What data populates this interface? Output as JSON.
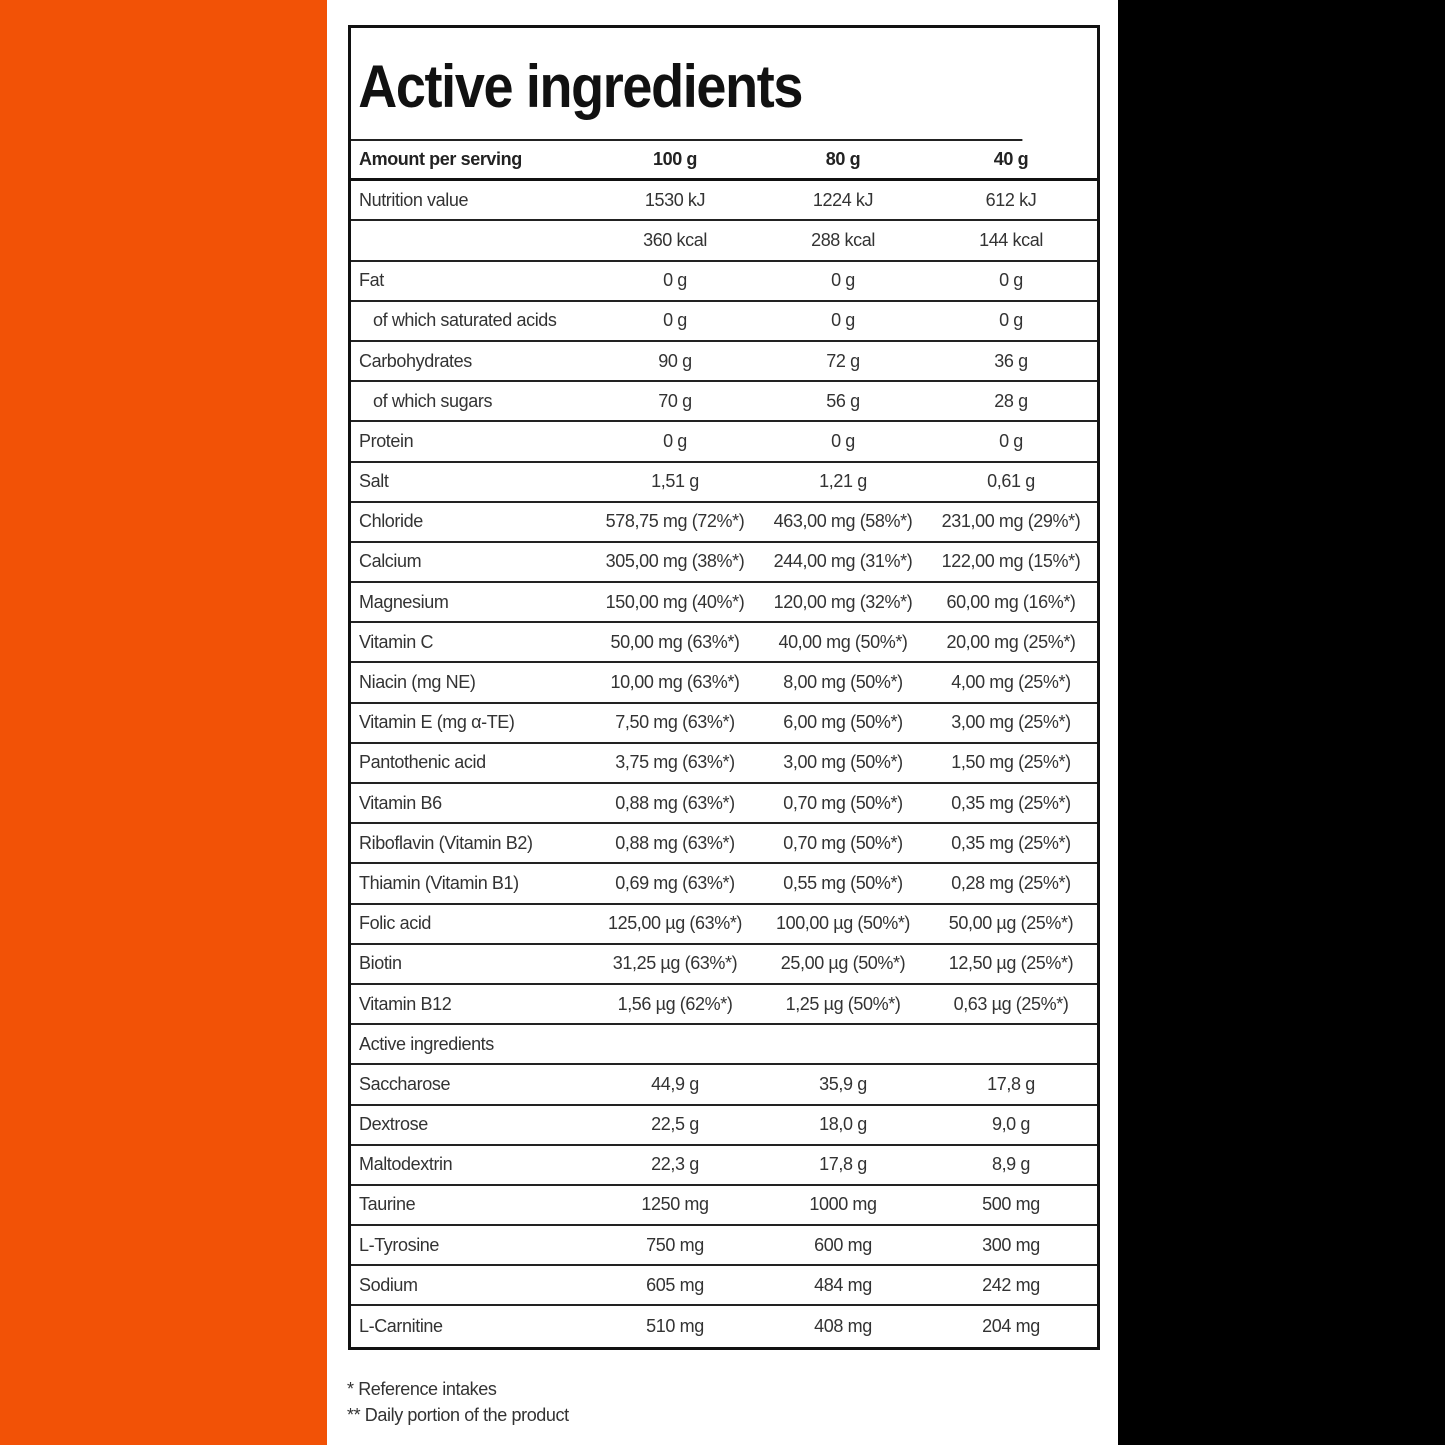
{
  "colors": {
    "left_panel": "#f25206",
    "right_panel": "#000000",
    "border": "#111111"
  },
  "title": "Active ingredients",
  "header": [
    "Amount per serving",
    "100 g",
    "80 g",
    "40 g"
  ],
  "rows": [
    {
      "label": "Nutrition value",
      "values": [
        "1530 kJ",
        "1224 kJ",
        "612 kJ"
      ]
    },
    {
      "label": "",
      "values": [
        "360 kcal",
        "288 kcal",
        "144 kcal"
      ]
    },
    {
      "label": "Fat",
      "values": [
        "0 g",
        "0 g",
        "0 g"
      ]
    },
    {
      "label": "of which saturated acids",
      "indent": true,
      "values": [
        "0 g",
        "0 g",
        "0 g"
      ]
    },
    {
      "label": "Carbohydrates",
      "values": [
        "90 g",
        "72 g",
        "36 g"
      ]
    },
    {
      "label": "of which sugars",
      "indent": true,
      "values": [
        "70 g",
        "56 g",
        "28 g"
      ]
    },
    {
      "label": "Protein",
      "values": [
        "0 g",
        "0 g",
        "0 g"
      ]
    },
    {
      "label": "Salt",
      "values": [
        "1,51 g",
        "1,21 g",
        "0,61 g"
      ]
    },
    {
      "label": "Chloride",
      "values": [
        "578,75 mg (72%*)",
        "463,00 mg (58%*)",
        "231,00 mg (29%*)"
      ]
    },
    {
      "label": "Calcium",
      "values": [
        "305,00 mg (38%*)",
        "244,00 mg (31%*)",
        "122,00 mg (15%*)"
      ]
    },
    {
      "label": "Magnesium",
      "values": [
        "150,00 mg (40%*)",
        "120,00 mg (32%*)",
        "60,00 mg (16%*)"
      ]
    },
    {
      "label": "Vitamin C",
      "values": [
        "50,00 mg (63%*)",
        "40,00 mg (50%*)",
        "20,00 mg (25%*)"
      ]
    },
    {
      "label": "Niacin (mg NE)",
      "values": [
        "10,00 mg (63%*)",
        "8,00 mg (50%*)",
        "4,00 mg (25%*)"
      ]
    },
    {
      "label": "Vitamin E (mg α-TE)",
      "values": [
        "7,50 mg (63%*)",
        "6,00 mg (50%*)",
        "3,00 mg (25%*)"
      ]
    },
    {
      "label": "Pantothenic acid",
      "values": [
        "3,75 mg (63%*)",
        "3,00 mg (50%*)",
        "1,50 mg (25%*)"
      ]
    },
    {
      "label": "Vitamin B6",
      "values": [
        "0,88 mg (63%*)",
        "0,70 mg (50%*)",
        "0,35 mg (25%*)"
      ]
    },
    {
      "label": "Riboflavin (Vitamin B2)",
      "values": [
        "0,88 mg (63%*)",
        "0,70 mg (50%*)",
        "0,35 mg (25%*)"
      ]
    },
    {
      "label": "Thiamin (Vitamin B1)",
      "values": [
        "0,69 mg (63%*)",
        "0,55 mg (50%*)",
        "0,28 mg (25%*)"
      ]
    },
    {
      "label": "Folic acid",
      "values": [
        "125,00 µg (63%*)",
        "100,00 µg (50%*)",
        "50,00 µg (25%*)"
      ]
    },
    {
      "label": "Biotin",
      "values": [
        "31,25 µg (63%*)",
        "25,00 µg (50%*)",
        "12,50 µg (25%*)"
      ]
    },
    {
      "label": "Vitamin B12",
      "values": [
        "1,56 µg (62%*)",
        "1,25 µg (50%*)",
        "0,63 µg (25%*)"
      ]
    },
    {
      "label": "Active ingredients",
      "values": [
        "",
        "",
        ""
      ]
    },
    {
      "label": "Saccharose",
      "values": [
        "44,9 g",
        "35,9 g",
        "17,8 g"
      ]
    },
    {
      "label": "Dextrose",
      "values": [
        "22,5 g",
        "18,0 g",
        "9,0 g"
      ]
    },
    {
      "label": "Maltodextrin",
      "values": [
        "22,3 g",
        "17,8 g",
        "8,9 g"
      ]
    },
    {
      "label": "Taurine",
      "values": [
        "1250 mg",
        "1000 mg",
        "500 mg"
      ]
    },
    {
      "label": "L-Tyrosine",
      "values": [
        "750 mg",
        "600 mg",
        "300 mg"
      ]
    },
    {
      "label": "Sodium",
      "values": [
        "605 mg",
        "484 mg",
        "242 mg"
      ]
    },
    {
      "label": "L-Carnitine",
      "values": [
        "510 mg",
        "408 mg",
        "204 mg"
      ]
    }
  ],
  "notes": [
    "* Reference intakes",
    "** Daily portion of the product"
  ]
}
